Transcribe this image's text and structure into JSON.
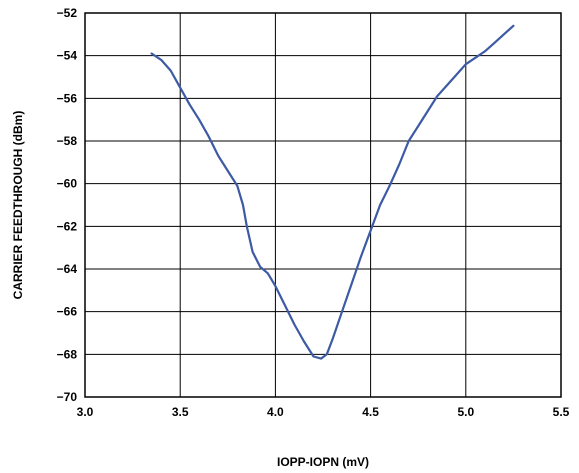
{
  "chart_data": {
    "type": "line",
    "title": "",
    "xlabel": "IOPP-IOPN (mV)",
    "ylabel": "CARRIER FEEDTHROUGH (dBm)",
    "xlim": [
      3.0,
      5.5
    ],
    "ylim": [
      -70,
      -52
    ],
    "xticks": [
      "3.0",
      "3.5",
      "4.0",
      "4.5",
      "5.0",
      "5.5"
    ],
    "yticks": [
      "−52",
      "−54",
      "−56",
      "−58",
      "−60",
      "−62",
      "−64",
      "−66",
      "−68",
      "−70"
    ],
    "grid": true,
    "line_color": "#3d5aa5",
    "series": [
      {
        "x": [
          3.35,
          3.4,
          3.45,
          3.5,
          3.55,
          3.6,
          3.65,
          3.7,
          3.75,
          3.8,
          3.83,
          3.85,
          3.88,
          3.92,
          3.96,
          4.0,
          4.05,
          4.1,
          4.15,
          4.2,
          4.24,
          4.27,
          4.3,
          4.35,
          4.4,
          4.45,
          4.5,
          4.55,
          4.6,
          4.65,
          4.7,
          4.75,
          4.8,
          4.85,
          4.9,
          4.95,
          5.0,
          5.05,
          5.1,
          5.15,
          5.2,
          5.25
        ],
        "y": [
          -53.9,
          -54.2,
          -54.7,
          -55.5,
          -56.3,
          -57.0,
          -57.8,
          -58.7,
          -59.4,
          -60.1,
          -61.0,
          -62.0,
          -63.2,
          -63.9,
          -64.2,
          -64.8,
          -65.7,
          -66.6,
          -67.4,
          -68.1,
          -68.2,
          -68.0,
          -67.3,
          -66.0,
          -64.7,
          -63.4,
          -62.2,
          -61.0,
          -60.1,
          -59.1,
          -58.0,
          -57.3,
          -56.6,
          -55.9,
          -55.4,
          -54.9,
          -54.4,
          -54.1,
          -53.8,
          -53.4,
          -53.0,
          -52.6
        ]
      }
    ]
  }
}
